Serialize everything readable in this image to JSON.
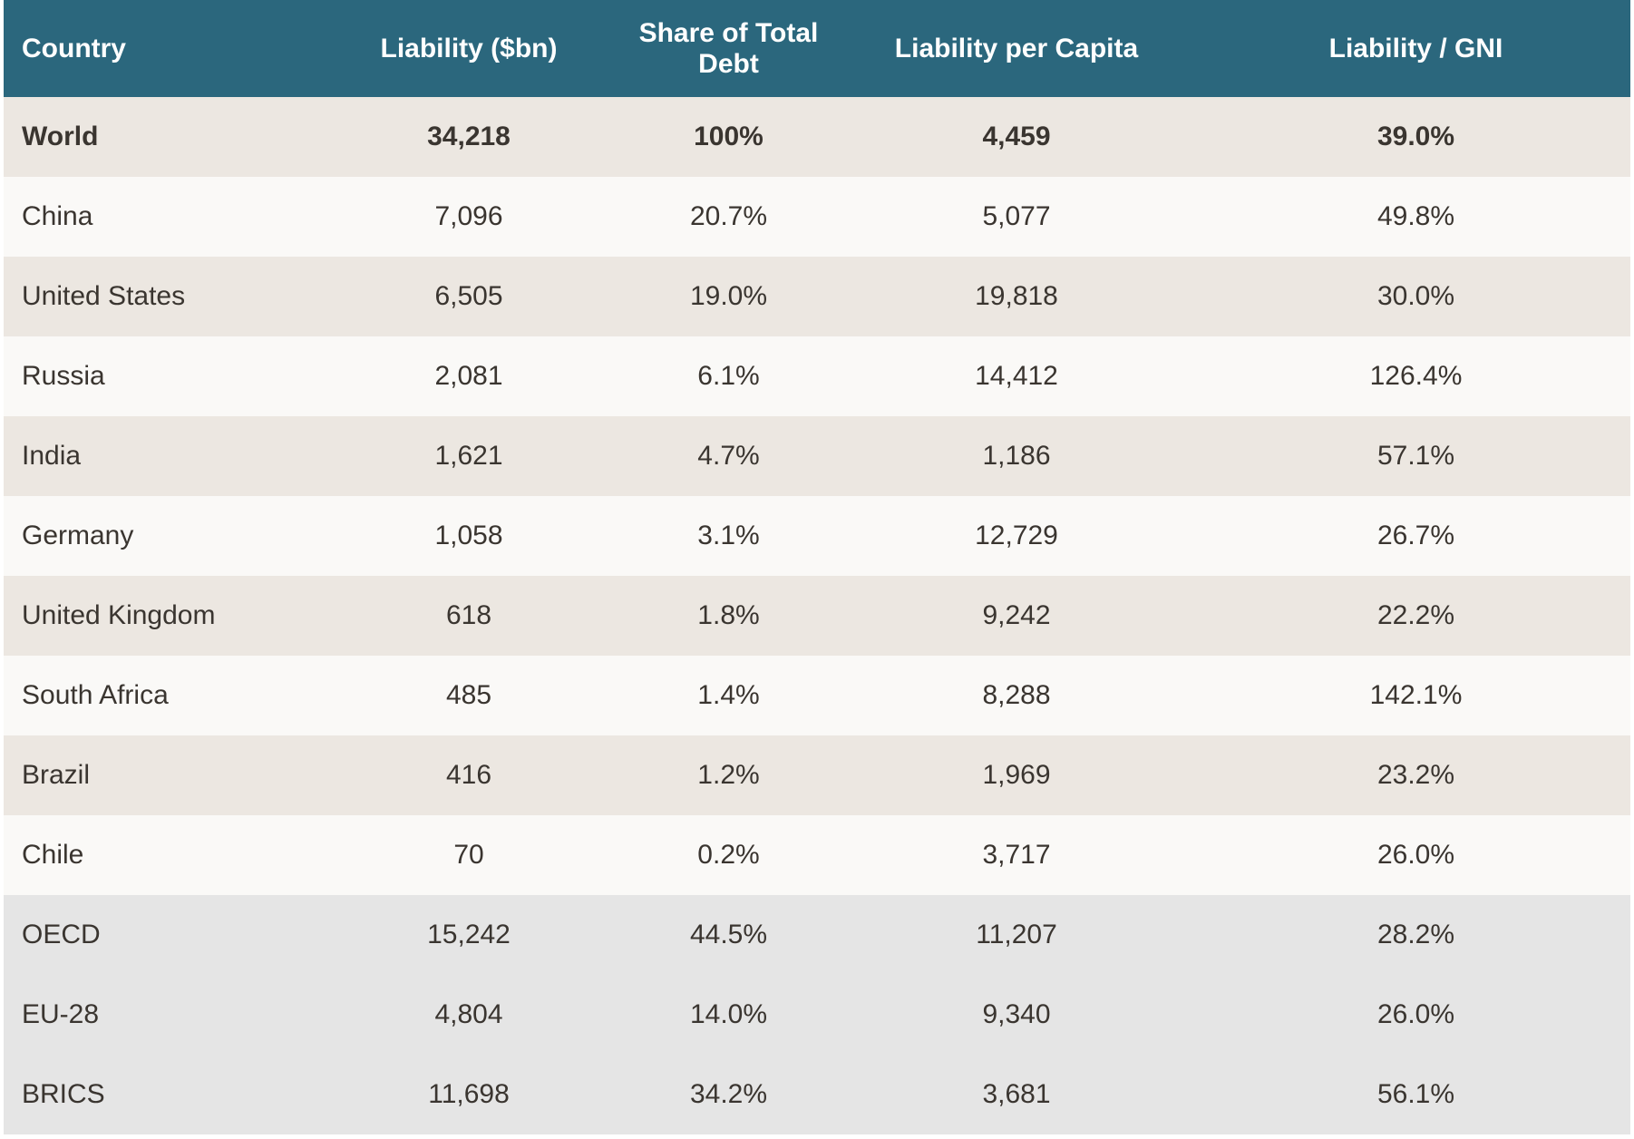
{
  "table": {
    "headers": [
      "Country",
      "Liability ($bn)",
      "Share of Total Debt",
      "Liability per Capita",
      "Liability / GNI"
    ],
    "rows": [
      {
        "country": "World",
        "liability": "34,218",
        "share": "100%",
        "per_capita": "4,459",
        "gni": "39.0%"
      },
      {
        "country": "China",
        "liability": "7,096",
        "share": "20.7%",
        "per_capita": "5,077",
        "gni": "49.8%"
      },
      {
        "country": "United States",
        "liability": "6,505",
        "share": "19.0%",
        "per_capita": "19,818",
        "gni": "30.0%"
      },
      {
        "country": "Russia",
        "liability": "2,081",
        "share": "6.1%",
        "per_capita": "14,412",
        "gni": "126.4%"
      },
      {
        "country": "India",
        "liability": "1,621",
        "share": "4.7%",
        "per_capita": "1,186",
        "gni": "57.1%"
      },
      {
        "country": "Germany",
        "liability": "1,058",
        "share": "3.1%",
        "per_capita": "12,729",
        "gni": "26.7%"
      },
      {
        "country": "United Kingdom",
        "liability": "618",
        "share": "1.8%",
        "per_capita": "9,242",
        "gni": "22.2%"
      },
      {
        "country": "South Africa",
        "liability": "485",
        "share": "1.4%",
        "per_capita": "8,288",
        "gni": "142.1%"
      },
      {
        "country": "Brazil",
        "liability": "416",
        "share": "1.2%",
        "per_capita": "1,969",
        "gni": "23.2%"
      },
      {
        "country": "Chile",
        "liability": "70",
        "share": "0.2%",
        "per_capita": "3,717",
        "gni": "26.0%"
      },
      {
        "country": "OECD",
        "liability": "15,242",
        "share": "44.5%",
        "per_capita": "11,207",
        "gni": "28.2%"
      },
      {
        "country": "EU-28",
        "liability": "4,804",
        "share": "14.0%",
        "per_capita": "9,340",
        "gni": "26.0%"
      },
      {
        "country": "BRICS",
        "liability": "11,698",
        "share": "34.2%",
        "per_capita": "3,681",
        "gni": "56.1%"
      }
    ]
  },
  "colors": {
    "header_bg": "#2b677d",
    "row_beige": "#ece7e1",
    "row_white": "#faf9f7",
    "row_grey": "#e5e5e5"
  }
}
